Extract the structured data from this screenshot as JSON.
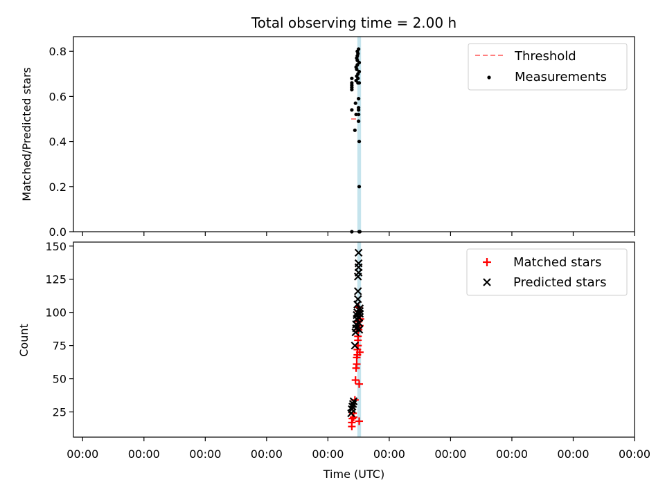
{
  "figure": {
    "title": "Total observing time = 2.00 h",
    "xlabel": "Time (UTC)",
    "x_tick_labels": [
      "00:00",
      "00:00",
      "00:00",
      "00:00",
      "00:00",
      "00:00",
      "00:00",
      "00:00",
      "00:00",
      "00:00"
    ]
  },
  "chart_data": [
    {
      "type": "scatter",
      "panel": "top",
      "ylabel": "Matched/Predicted stars",
      "ylim": [
        0,
        0.865
      ],
      "yticks": [
        0.0,
        0.2,
        0.4,
        0.6,
        0.8
      ],
      "ytick_labels": [
        "0.0",
        "0.2",
        "0.4",
        "0.6",
        "0.8"
      ],
      "xlim": [
        -0.15,
        9.0
      ],
      "legend_position": "top-right",
      "shaded_interval": {
        "x0": 4.48,
        "x1": 4.54,
        "color": "#add8e6"
      },
      "threshold": {
        "name": "Threshold",
        "y": 0.5,
        "x0": 4.38,
        "x1": 4.5,
        "color": "#ff7f7f"
      },
      "series": [
        {
          "name": "Measurements",
          "color": "#000000",
          "marker": "dot",
          "x": [
            4.39,
            4.39,
            4.39,
            4.39,
            4.39,
            4.39,
            4.39,
            4.44,
            4.45,
            4.46,
            4.46,
            4.46,
            4.47,
            4.47,
            4.47,
            4.48,
            4.48,
            4.48,
            4.48,
            4.49,
            4.49,
            4.49,
            4.49,
            4.5,
            4.5,
            4.5,
            4.5,
            4.5,
            4.5,
            4.51,
            4.51,
            4.51,
            4.51,
            4.51,
            4.51,
            4.52
          ],
          "y": [
            0.0,
            0.54,
            0.63,
            0.64,
            0.65,
            0.66,
            0.68,
            0.45,
            0.57,
            0.52,
            0.67,
            0.73,
            0.69,
            0.77,
            0.72,
            0.74,
            0.76,
            0.78,
            0.8,
            0.66,
            0.68,
            0.7,
            0.79,
            0.81,
            0.52,
            0.54,
            0.55,
            0.59,
            0.49,
            0.4,
            0.2,
            0.0,
            0.66,
            0.71,
            0.75,
            0.0
          ]
        }
      ]
    },
    {
      "type": "scatter",
      "panel": "bottom",
      "ylabel": "Count",
      "ylim": [
        6,
        153
      ],
      "yticks": [
        25,
        50,
        75,
        100,
        125,
        150
      ],
      "ytick_labels": [
        "25",
        "50",
        "75",
        "100",
        "125",
        "150"
      ],
      "xlim": [
        -0.15,
        9.0
      ],
      "legend_position": "top-right",
      "shaded_interval": {
        "x0": 4.48,
        "x1": 4.54,
        "color": "#add8e6"
      },
      "series": [
        {
          "name": "Matched stars",
          "color": "#ff0000",
          "marker": "plus",
          "x": [
            4.39,
            4.39,
            4.4,
            4.41,
            4.42,
            4.44,
            4.45,
            4.46,
            4.47,
            4.47,
            4.48,
            4.48,
            4.49,
            4.49,
            4.49,
            4.5,
            4.5,
            4.5,
            4.5,
            4.51,
            4.51,
            4.52,
            4.52,
            4.53
          ],
          "y": [
            14,
            17,
            20,
            24,
            21,
            34,
            49,
            58,
            61,
            66,
            68,
            72,
            75,
            79,
            82,
            87,
            93,
            101,
            104,
            46,
            18,
            70,
            90,
            95
          ]
        },
        {
          "name": "Predicted stars",
          "color": "#000000",
          "marker": "x",
          "x": [
            4.38,
            4.39,
            4.4,
            4.41,
            4.42,
            4.44,
            4.45,
            4.46,
            4.46,
            4.47,
            4.47,
            4.48,
            4.48,
            4.49,
            4.49,
            4.49,
            4.5,
            4.5,
            4.5,
            4.5,
            4.51,
            4.51,
            4.51,
            4.52,
            4.52,
            4.52
          ],
          "y": [
            24,
            27,
            29,
            31,
            33,
            75,
            85,
            88,
            91,
            95,
            98,
            100,
            106,
            110,
            116,
            127,
            130,
            134,
            137,
            145,
            87,
            92,
            96,
            99,
            101,
            103
          ]
        }
      ]
    }
  ]
}
